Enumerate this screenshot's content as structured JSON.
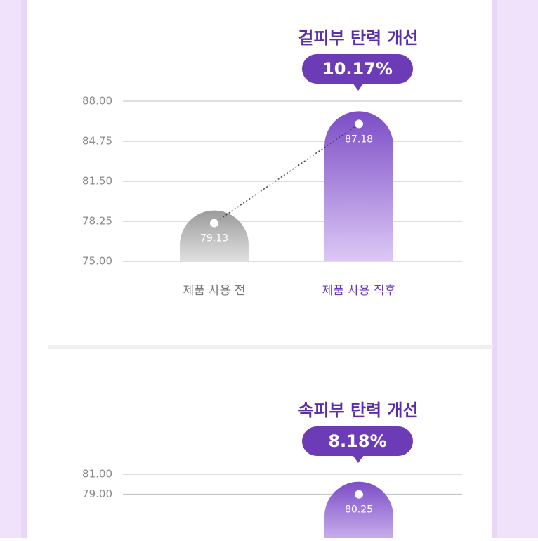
{
  "chart_data": [
    {
      "type": "bar",
      "title": "겉피부 탄력 개선",
      "badge": "10.17%",
      "categories": [
        "제품 사용 전",
        "제품 사용 직후"
      ],
      "values": [
        79.13,
        87.18
      ],
      "colors": [
        "#9b9b9b",
        "#7c4dc6"
      ],
      "ylim": [
        75,
        88
      ],
      "yticks": [
        {
          "value": 88,
          "label": "88.00"
        },
        {
          "value": 84.75,
          "label": "84.75"
        },
        {
          "value": 81.5,
          "label": "81.50"
        },
        {
          "value": 78.25,
          "label": "78.25"
        },
        {
          "value": 75,
          "label": "75.00"
        }
      ],
      "grid": true
    },
    {
      "type": "bar",
      "title": "속피부 탄력 개선",
      "badge": "8.18%",
      "categories": [
        null,
        null
      ],
      "values": [
        null,
        80.25
      ],
      "colors": [
        "#9b9b9b",
        "#7c4dc6"
      ],
      "ylim": [
        73,
        81
      ],
      "yticks": [
        {
          "value": 81,
          "label": "81.00"
        },
        {
          "value": 79,
          "label": "79.00"
        }
      ],
      "grid": true
    }
  ]
}
